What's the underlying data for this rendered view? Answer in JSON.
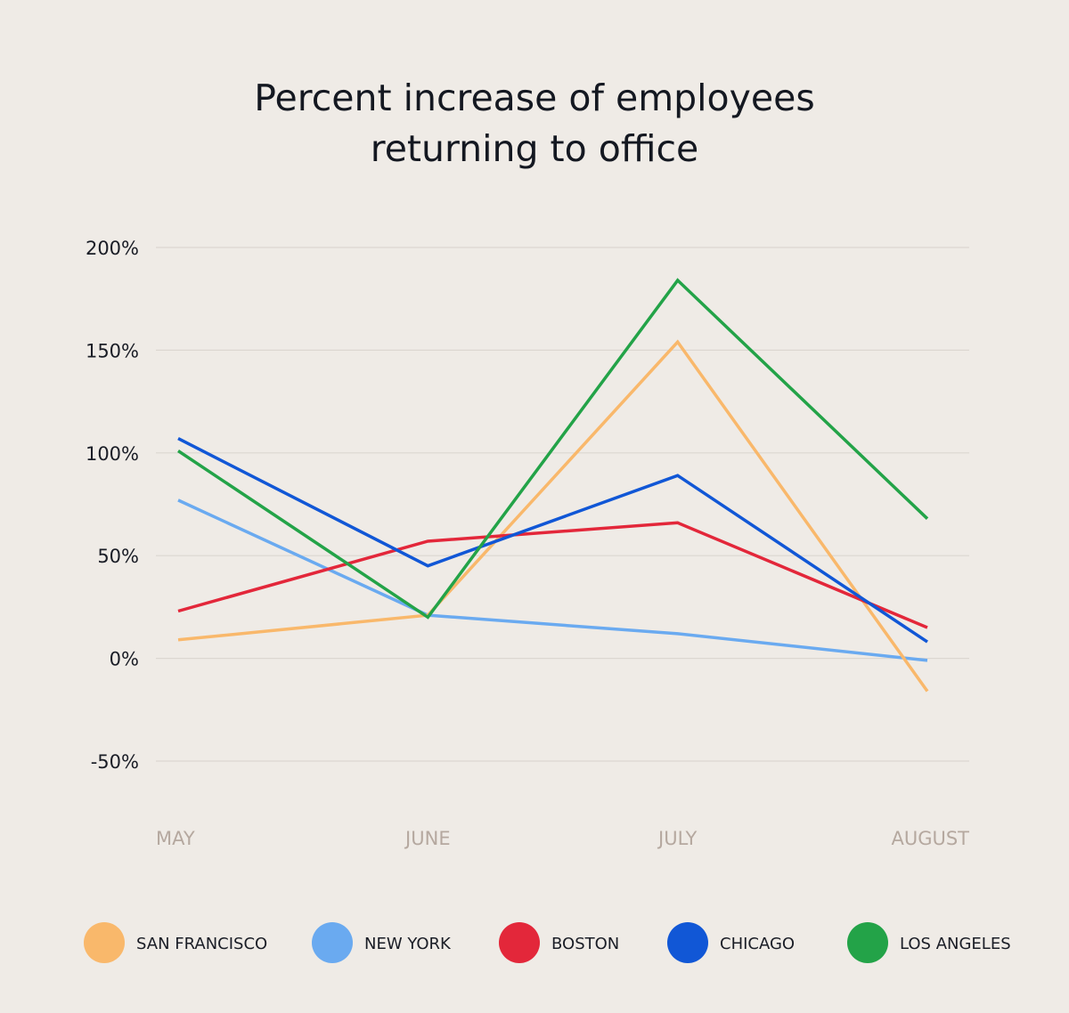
{
  "chart_data": {
    "type": "line",
    "title_lines": [
      "Percent increase of employees",
      "returning to office"
    ],
    "xlabel": "",
    "ylabel": "",
    "categories": [
      "MAY",
      "JUNE",
      "JULY",
      "AUGUST"
    ],
    "y_ticks": [
      "200%",
      "150%",
      "100%",
      "50%",
      "0%",
      "-50%"
    ],
    "y_tick_values": [
      200,
      150,
      100,
      50,
      0,
      -50
    ],
    "ylim": [
      -50,
      200
    ],
    "grid": true,
    "legend_position": "bottom",
    "series": [
      {
        "name": "SAN FRANCISCO",
        "color": "#f9b86b",
        "values": [
          9,
          21,
          154,
          -16
        ]
      },
      {
        "name": "NEW YORK",
        "color": "#6aaaf0",
        "values": [
          77,
          21,
          12,
          -1
        ]
      },
      {
        "name": "BOSTON",
        "color": "#e3273a",
        "values": [
          23,
          57,
          66,
          15
        ]
      },
      {
        "name": "CHICAGO",
        "color": "#1157d6",
        "values": [
          107,
          45,
          89,
          8
        ]
      },
      {
        "name": "LOS ANGELES",
        "color": "#23a348",
        "values": [
          101,
          20,
          184,
          68
        ]
      }
    ],
    "draw_order": [
      "NEW YORK",
      "SAN FRANCISCO",
      "BOSTON",
      "CHICAGO",
      "LOS ANGELES"
    ]
  }
}
